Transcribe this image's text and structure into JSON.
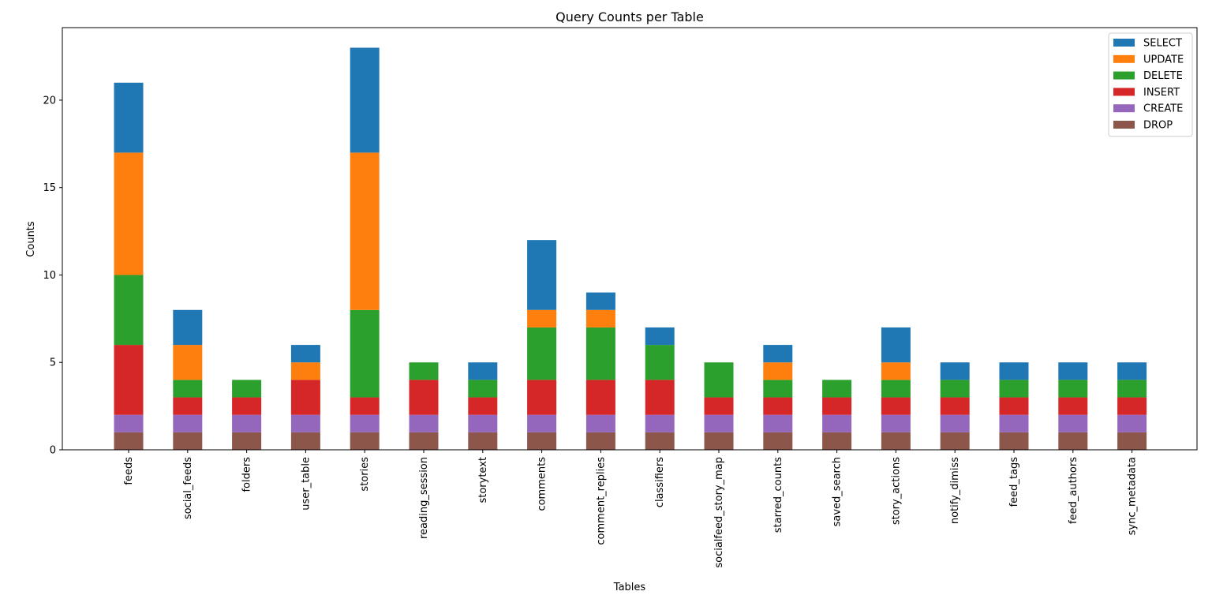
{
  "chart_data": {
    "type": "bar",
    "stacked": true,
    "title": "Query Counts per Table",
    "xlabel": "Tables",
    "ylabel": "Counts",
    "ylim": [
      0,
      24.15
    ],
    "yticks": [
      0,
      5,
      10,
      15,
      20
    ],
    "grid": false,
    "legend_position": "top-right",
    "categories": [
      "feeds",
      "social_feeds",
      "folders",
      "user_table",
      "stories",
      "reading_session",
      "storytext",
      "comments",
      "comment_replies",
      "classifiers",
      "socialfeed_story_map",
      "starred_counts",
      "saved_search",
      "story_actions",
      "notify_dimiss",
      "feed_tags",
      "feed_authors",
      "sync_metadata"
    ],
    "series": [
      {
        "name": "DROP",
        "color": "#8c564b",
        "values": [
          1,
          1,
          1,
          1,
          1,
          1,
          1,
          1,
          1,
          1,
          1,
          1,
          1,
          1,
          1,
          1,
          1,
          1
        ]
      },
      {
        "name": "CREATE",
        "color": "#9467bd",
        "values": [
          1,
          1,
          1,
          1,
          1,
          1,
          1,
          1,
          1,
          1,
          1,
          1,
          1,
          1,
          1,
          1,
          1,
          1
        ]
      },
      {
        "name": "INSERT",
        "color": "#d62728",
        "values": [
          4,
          1,
          1,
          2,
          1,
          2,
          1,
          2,
          2,
          2,
          1,
          1,
          1,
          1,
          1,
          1,
          1,
          1
        ]
      },
      {
        "name": "DELETE",
        "color": "#2ca02c",
        "values": [
          4,
          1,
          1,
          0,
          5,
          1,
          1,
          3,
          3,
          2,
          2,
          1,
          1,
          1,
          1,
          1,
          1,
          1
        ]
      },
      {
        "name": "UPDATE",
        "color": "#ff7f0e",
        "values": [
          7,
          2,
          0,
          1,
          9,
          0,
          0,
          1,
          1,
          0,
          0,
          1,
          0,
          1,
          0,
          0,
          0,
          0
        ]
      },
      {
        "name": "SELECT",
        "color": "#1f77b4",
        "values": [
          4,
          2,
          0,
          1,
          6,
          0,
          1,
          4,
          1,
          1,
          0,
          1,
          0,
          2,
          1,
          1,
          1,
          1
        ]
      }
    ],
    "legend_order": [
      "SELECT",
      "UPDATE",
      "DELETE",
      "INSERT",
      "CREATE",
      "DROP"
    ]
  }
}
